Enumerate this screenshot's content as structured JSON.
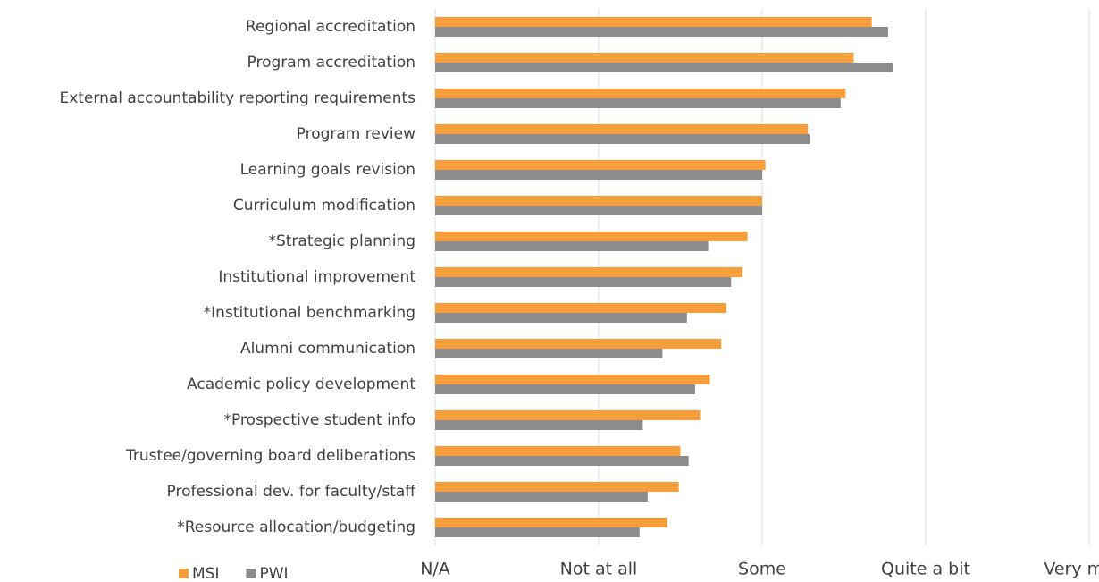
{
  "chart_data": {
    "type": "bar",
    "orientation": "horizontal",
    "categories": [
      "Regional accreditation",
      "Program accreditation",
      "External accountability reporting requirements",
      "Program review",
      "Learning goals revision",
      "Curriculum modification",
      "*Strategic planning",
      "Institutional improvement",
      "*Institutional benchmarking",
      "Alumni communication",
      "Academic policy development",
      "*Prospective student info",
      "Trustee/governing board deliberations",
      "Professional dev. for faculty/staff",
      "*Resource allocation/budgeting"
    ],
    "series": [
      {
        "name": "MSI",
        "color": "#f79e3c",
        "values": [
          2.67,
          2.56,
          2.51,
          2.28,
          2.02,
          2.0,
          1.91,
          1.88,
          1.78,
          1.75,
          1.68,
          1.62,
          1.5,
          1.49,
          1.42
        ]
      },
      {
        "name": "PWI",
        "color": "#8c8c8c",
        "values": [
          2.77,
          2.8,
          2.48,
          2.29,
          2.0,
          2.0,
          1.67,
          1.81,
          1.54,
          1.39,
          1.59,
          1.27,
          1.55,
          1.3,
          1.25
        ]
      }
    ],
    "xlim": [
      0,
      4
    ],
    "xticks": [
      {
        "value": 0,
        "label": "N/A"
      },
      {
        "value": 1,
        "label": "Not at all"
      },
      {
        "value": 2,
        "label": "Some"
      },
      {
        "value": 3,
        "label": "Quite a bit"
      },
      {
        "value": 4,
        "label": "Very much"
      }
    ],
    "grid": true,
    "legend": "bottom-left"
  }
}
